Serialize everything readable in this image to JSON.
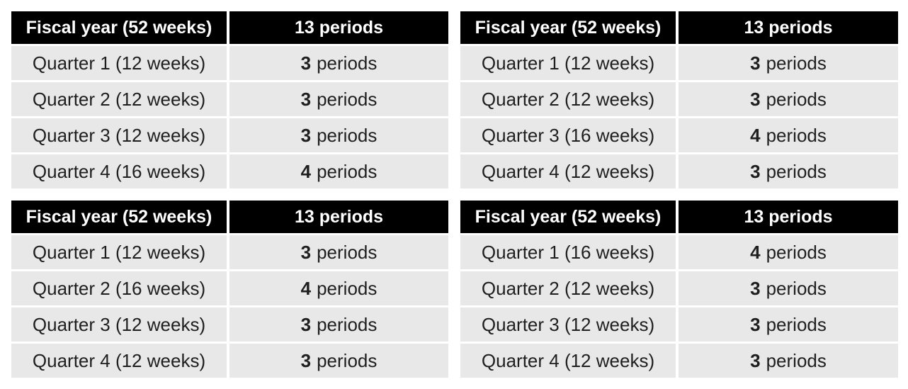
{
  "page": {
    "background_color": "#ffffff",
    "description": "Four fiscal year calendar tables (4-4-5 style, 52 weeks / 13 periods)"
  },
  "colors": {
    "header_bg": "#000000",
    "header_text": "#ffffff",
    "row_bg": "#e8e8e8",
    "row_text": "#1f1f1f"
  },
  "tables": [
    {
      "position": "top-left",
      "header": {
        "fiscal_year": "Fiscal year (52 weeks)",
        "periods": "13 periods"
      },
      "rows": [
        {
          "quarter": "Quarter 1 (12 weeks)",
          "periods_count": "3",
          "periods_label": "periods"
        },
        {
          "quarter": "Quarter 2 (12 weeks)",
          "periods_count": "3",
          "periods_label": "periods"
        },
        {
          "quarter": "Quarter 3 (12 weeks)",
          "periods_count": "3",
          "periods_label": "periods"
        },
        {
          "quarter": "Quarter 4 (16 weeks)",
          "periods_count": "4",
          "periods_label": "periods"
        }
      ]
    },
    {
      "position": "top-right",
      "header": {
        "fiscal_year": "Fiscal year (52 weeks)",
        "periods": "13 periods"
      },
      "rows": [
        {
          "quarter": "Quarter 1 (12 weeks)",
          "periods_count": "3",
          "periods_label": "periods"
        },
        {
          "quarter": "Quarter 2 (12 weeks)",
          "periods_count": "3",
          "periods_label": "periods"
        },
        {
          "quarter": "Quarter 3 (16 weeks)",
          "periods_count": "4",
          "periods_label": "periods"
        },
        {
          "quarter": "Quarter 4 (12 weeks)",
          "periods_count": "3",
          "periods_label": "periods"
        }
      ]
    },
    {
      "position": "bottom-left",
      "header": {
        "fiscal_year": "Fiscal year (52 weeks)",
        "periods": "13 periods"
      },
      "rows": [
        {
          "quarter": "Quarter 1 (12 weeks)",
          "periods_count": "3",
          "periods_label": "periods"
        },
        {
          "quarter": "Quarter 2 (16 weeks)",
          "periods_count": "4",
          "periods_label": "periods"
        },
        {
          "quarter": "Quarter 3 (12 weeks)",
          "periods_count": "3",
          "periods_label": "periods"
        },
        {
          "quarter": "Quarter 4 (12 weeks)",
          "periods_count": "3",
          "periods_label": "periods"
        }
      ]
    },
    {
      "position": "bottom-right",
      "header": {
        "fiscal_year": "Fiscal year (52 weeks)",
        "periods": "13 periods"
      },
      "rows": [
        {
          "quarter": "Quarter 1 (16 weeks)",
          "periods_count": "4",
          "periods_label": "periods"
        },
        {
          "quarter": "Quarter 2 (12 weeks)",
          "periods_count": "3",
          "periods_label": "periods"
        },
        {
          "quarter": "Quarter 3 (12 weeks)",
          "periods_count": "3",
          "periods_label": "periods"
        },
        {
          "quarter": "Quarter 4 (12 weeks)",
          "periods_count": "3",
          "periods_label": "periods"
        }
      ]
    }
  ]
}
